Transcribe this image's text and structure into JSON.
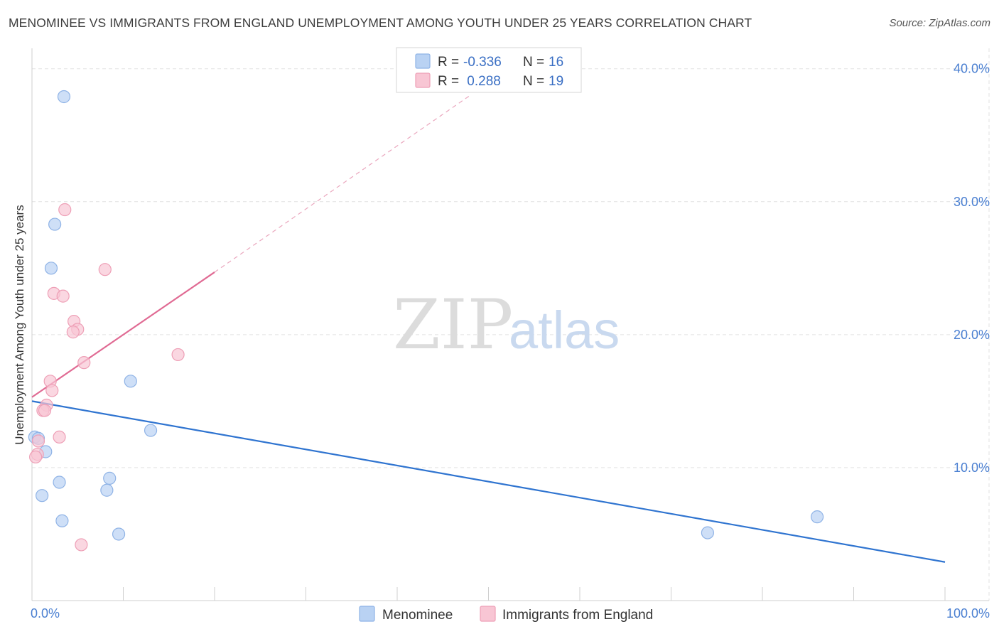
{
  "title": "MENOMINEE VS IMMIGRANTS FROM ENGLAND UNEMPLOYMENT AMONG YOUTH UNDER 25 YEARS CORRELATION CHART",
  "source": "Source: ZipAtlas.com",
  "watermark": {
    "zip": "ZIP",
    "atlas": "atlas"
  },
  "colors": {
    "menominee_fill": "#b9d2f3",
    "menominee_stroke": "#8fb3e6",
    "menominee_line": "#2f74d0",
    "england_fill": "#f8c6d4",
    "england_stroke": "#ee9fb6",
    "england_line": "#e06a93",
    "grid": "#e2e2e2",
    "tick_label": "#4a7fd1"
  },
  "legend": {
    "rows": [
      {
        "r_label": "R =",
        "r_value": "-0.336",
        "n_label": "N =",
        "n_value": "16"
      },
      {
        "r_label": "R =",
        "r_value": " 0.288",
        "n_label": "N =",
        "n_value": "19"
      }
    ]
  },
  "bottom_legend": [
    "Menominee",
    "Immigrants from England"
  ],
  "chart_data": {
    "type": "scatter",
    "ylabel": "Unemployment Among Youth under 25 years",
    "xlim": [
      0,
      100
    ],
    "ylim": [
      0,
      41
    ],
    "x_tick_labels": [
      {
        "value": 0,
        "label": "0.0%"
      },
      {
        "value": 100,
        "label": "100.0%"
      }
    ],
    "y_tick_labels": [
      {
        "value": 10,
        "label": "10.0%"
      },
      {
        "value": 20,
        "label": "20.0%"
      },
      {
        "value": 30,
        "label": "30.0%"
      },
      {
        "value": 40,
        "label": "40.0%"
      }
    ],
    "x_minor_ticks": [
      10,
      20,
      30,
      40,
      50,
      60,
      70,
      80,
      90,
      100
    ],
    "grid": true,
    "legend_position": "top-center",
    "series": [
      {
        "name": "Menominee",
        "points": [
          [
            3.5,
            37.9
          ],
          [
            2.5,
            28.3
          ],
          [
            2.1,
            25.0
          ],
          [
            10.8,
            16.5
          ],
          [
            13.0,
            12.8
          ],
          [
            0.3,
            12.3
          ],
          [
            0.7,
            12.2
          ],
          [
            1.5,
            11.2
          ],
          [
            8.5,
            9.2
          ],
          [
            3.0,
            8.9
          ],
          [
            8.2,
            8.3
          ],
          [
            1.1,
            7.9
          ],
          [
            3.3,
            6.0
          ],
          [
            9.5,
            5.0
          ],
          [
            86.0,
            6.3
          ],
          [
            74.0,
            5.1
          ]
        ],
        "trend": {
          "x0": 0,
          "y0": 15.0,
          "x1": 100,
          "y1": 2.9,
          "dashed_extension": false
        }
      },
      {
        "name": "Immigrants from England",
        "points": [
          [
            3.6,
            29.4
          ],
          [
            8.0,
            24.9
          ],
          [
            2.4,
            23.1
          ],
          [
            3.4,
            22.9
          ],
          [
            4.6,
            21.0
          ],
          [
            5.0,
            20.4
          ],
          [
            4.5,
            20.2
          ],
          [
            5.7,
            17.9
          ],
          [
            16.0,
            18.5
          ],
          [
            2.0,
            16.5
          ],
          [
            2.2,
            15.8
          ],
          [
            1.6,
            14.7
          ],
          [
            1.2,
            14.3
          ],
          [
            1.4,
            14.3
          ],
          [
            3.0,
            12.3
          ],
          [
            0.7,
            12.0
          ],
          [
            0.6,
            11.0
          ],
          [
            0.4,
            10.8
          ],
          [
            5.4,
            4.2
          ]
        ],
        "trend": {
          "x0": 0,
          "y0": 15.3,
          "x1": 20,
          "y1": 24.7,
          "dashed_extension": true,
          "x2": 48,
          "y2": 38
        }
      }
    ]
  }
}
